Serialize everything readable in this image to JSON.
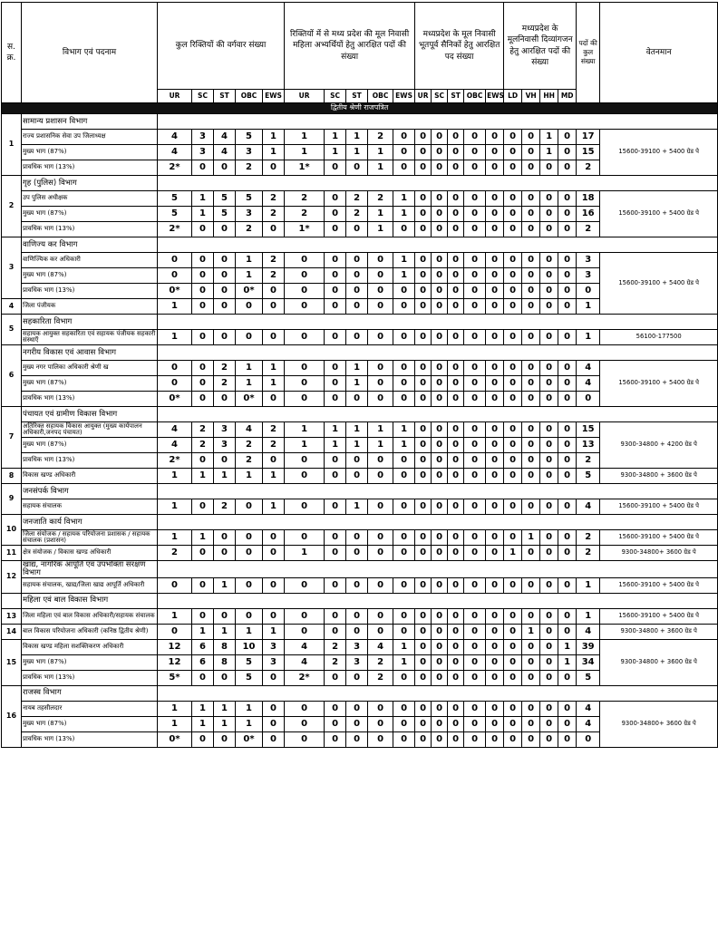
{
  "header": {
    "sno": "स. क्र.",
    "post": "विभाग एवं पदनाम",
    "total_vacancies": "कुल रिक्तियों की वर्गवार संख्या",
    "women": "रिक्तियों में से मध्य प्रदेश की मूल निवासी महिला अभ्यर्थियों हेतु आरक्षित पदों की संख्या",
    "ex_servicemen": "मध्यप्रदेश के मूल निवासी भूतपूर्व सैनिकों हेतु आरक्षित पद संख्या",
    "disabled": "मध्यप्रदेश के मूलनिवासी दिव्यांगजन हेतु आरक्षित पदों की संख्या",
    "total_posts": "पदों की कुल संख्या",
    "pay": "वेतनमान",
    "subheaders": [
      "UR",
      "SC",
      "ST",
      "OBC",
      "EWS",
      "UR",
      "SC",
      "ST",
      "OBC",
      "EWS",
      "UR",
      "SC",
      "ST",
      "OBC",
      "EWS",
      "LD",
      "VH",
      "HH",
      "MD"
    ]
  },
  "section_band": "द्वितीय श्रेणी राजपत्रित",
  "sections": [
    {
      "no": "1",
      "department": "सामान्य प्रशासन विभाग",
      "rows": [
        {
          "post": "राज्य प्रशासनिक सेवा उप जिलाध्यक्ष",
          "cells": [
            "4",
            "3",
            "4",
            "5",
            "1",
            "1",
            "1",
            "1",
            "2",
            "0",
            "0",
            "0",
            "0",
            "0",
            "0",
            "0",
            "0",
            "1",
            "0"
          ],
          "total": "17",
          "pay": "15600-39100 + 5400 ग्रेड पे"
        },
        {
          "post": "मुख्य भाग (87%)",
          "cells": [
            "4",
            "3",
            "4",
            "3",
            "1",
            "1",
            "1",
            "1",
            "1",
            "0",
            "0",
            "0",
            "0",
            "0",
            "0",
            "0",
            "0",
            "1",
            "0"
          ],
          "total": "15"
        },
        {
          "post": "प्रावधिक भाग (13%)",
          "cells": [
            "2*",
            "0",
            "0",
            "2",
            "0",
            "1*",
            "0",
            "0",
            "1",
            "0",
            "0",
            "0",
            "0",
            "0",
            "0",
            "0",
            "0",
            "0",
            "0"
          ],
          "total": "2"
        }
      ]
    },
    {
      "no": "2",
      "department": "गृह (पुलिस) विभाग",
      "rows": [
        {
          "post": "उप पुलिस अधीक्षक",
          "cells": [
            "5",
            "1",
            "5",
            "5",
            "2",
            "2",
            "0",
            "2",
            "2",
            "1",
            "0",
            "0",
            "0",
            "0",
            "0",
            "0",
            "0",
            "0",
            "0"
          ],
          "total": "18",
          "pay": "15600-39100 + 5400 ग्रेड पे"
        },
        {
          "post": "मुख्य भाग (87%)",
          "cells": [
            "5",
            "1",
            "5",
            "3",
            "2",
            "2",
            "0",
            "2",
            "1",
            "1",
            "0",
            "0",
            "0",
            "0",
            "0",
            "0",
            "0",
            "0",
            "0"
          ],
          "total": "16"
        },
        {
          "post": "प्रावधिक भाग (13%)",
          "cells": [
            "2*",
            "0",
            "0",
            "2",
            "0",
            "1*",
            "0",
            "0",
            "1",
            "0",
            "0",
            "0",
            "0",
            "0",
            "0",
            "0",
            "0",
            "0",
            "0"
          ],
          "total": "2"
        }
      ]
    },
    {
      "no": "3",
      "department": "वाणिज्य कर विभाग",
      "rows": [
        {
          "post": "वाणिज्यिक कर अधिकारी",
          "cells": [
            "0",
            "0",
            "0",
            "1",
            "2",
            "0",
            "0",
            "0",
            "0",
            "1",
            "0",
            "0",
            "0",
            "0",
            "0",
            "0",
            "0",
            "0",
            "0"
          ],
          "total": "3",
          "pay": "15600-39100 + 5400 ग्रेड पे"
        },
        {
          "post": "मुख्य भाग (87%)",
          "cells": [
            "0",
            "0",
            "0",
            "1",
            "2",
            "0",
            "0",
            "0",
            "0",
            "1",
            "0",
            "0",
            "0",
            "0",
            "0",
            "0",
            "0",
            "0",
            "0"
          ],
          "total": "3"
        },
        {
          "post": "प्रावधिक भाग (13%)",
          "cells": [
            "0*",
            "0",
            "0",
            "0*",
            "0",
            "0",
            "0",
            "0",
            "0",
            "0",
            "0",
            "0",
            "0",
            "0",
            "0",
            "0",
            "0",
            "0",
            "0"
          ],
          "total": "0"
        },
        {
          "no": "4",
          "post": "जिला पंजीयक",
          "cells": [
            "1",
            "0",
            "0",
            "0",
            "0",
            "0",
            "0",
            "0",
            "0",
            "0",
            "0",
            "0",
            "0",
            "0",
            "0",
            "0",
            "0",
            "0",
            "0"
          ],
          "total": "1"
        }
      ]
    },
    {
      "no": "5",
      "department": "सहकारिता विभाग",
      "rows": [
        {
          "post": "सहायक आयुक्त सहकारिता एवं सहायक पंजीयक सहकारी संस्थाएँ",
          "cells": [
            "1",
            "0",
            "0",
            "0",
            "0",
            "0",
            "0",
            "0",
            "0",
            "0",
            "0",
            "0",
            "0",
            "0",
            "0",
            "0",
            "0",
            "0",
            "0"
          ],
          "total": "1",
          "pay": "56100-177500"
        }
      ]
    },
    {
      "no": "6",
      "department": "नगरीय विकास एवं आवास विभाग",
      "rows": [
        {
          "post": "मुख्य नगर पालिका अधिकारी श्रेणी ख",
          "cells": [
            "0",
            "0",
            "2",
            "1",
            "1",
            "0",
            "0",
            "1",
            "0",
            "0",
            "0",
            "0",
            "0",
            "0",
            "0",
            "0",
            "0",
            "0",
            "0"
          ],
          "total": "4",
          "pay": "15600-39100 + 5400 ग्रेड पे"
        },
        {
          "post": "मुख्य भाग (87%)",
          "cells": [
            "0",
            "0",
            "2",
            "1",
            "1",
            "0",
            "0",
            "1",
            "0",
            "0",
            "0",
            "0",
            "0",
            "0",
            "0",
            "0",
            "0",
            "0",
            "0"
          ],
          "total": "4"
        },
        {
          "post": "प्रावधिक भाग (13%)",
          "cells": [
            "0*",
            "0",
            "0",
            "0*",
            "0",
            "0",
            "0",
            "0",
            "0",
            "0",
            "0",
            "0",
            "0",
            "0",
            "0",
            "0",
            "0",
            "0",
            "0"
          ],
          "total": "0"
        }
      ]
    },
    {
      "no": "7",
      "department": "पंचायत एवं ग्रामीण विकास विभाग",
      "rows": [
        {
          "post": "अतिरिक्त सहायक विकास आयुक्त (मुख्य कार्यपालन अधिकारी,जनपद पंचायत)",
          "cells": [
            "4",
            "2",
            "3",
            "4",
            "2",
            "1",
            "1",
            "1",
            "1",
            "1",
            "0",
            "0",
            "0",
            "0",
            "0",
            "0",
            "0",
            "0",
            "0"
          ],
          "total": "15",
          "pay": "9300-34800 + 4200 ग्रेड पे"
        },
        {
          "post": "मुख्य भाग (87%)",
          "cells": [
            "4",
            "2",
            "3",
            "2",
            "2",
            "1",
            "1",
            "1",
            "1",
            "1",
            "0",
            "0",
            "0",
            "0",
            "0",
            "0",
            "0",
            "0",
            "0"
          ],
          "total": "13"
        },
        {
          "post": "प्रावधिक भाग (13%)",
          "cells": [
            "2*",
            "0",
            "0",
            "2",
            "0",
            "0",
            "0",
            "0",
            "0",
            "0",
            "0",
            "0",
            "0",
            "0",
            "0",
            "0",
            "0",
            "0",
            "0"
          ],
          "total": "2"
        },
        {
          "no": "8",
          "post": "विकास खण्ड अधिकारी",
          "cells": [
            "1",
            "1",
            "1",
            "1",
            "1",
            "0",
            "0",
            "0",
            "0",
            "0",
            "0",
            "0",
            "0",
            "0",
            "0",
            "0",
            "0",
            "0",
            "0"
          ],
          "total": "5",
          "pay": "9300-34800 + 3600 ग्रेड पे"
        }
      ]
    },
    {
      "no": "9",
      "department": "जनसंपर्क विभाग",
      "rows": [
        {
          "post": "सहायक संचालक",
          "cells": [
            "1",
            "0",
            "2",
            "0",
            "1",
            "0",
            "0",
            "1",
            "0",
            "0",
            "0",
            "0",
            "0",
            "0",
            "0",
            "0",
            "0",
            "0",
            "0"
          ],
          "total": "4",
          "pay": "15600-39100 + 5400 ग्रेड पे"
        }
      ]
    },
    {
      "no": "10",
      "department": "जनजाति कार्य विभाग",
      "rows": [
        {
          "post": "जिला संयोजक / सहायक परियोजना प्रशासक / सहायक संचालक (प्रशासन)",
          "cells": [
            "1",
            "1",
            "0",
            "0",
            "0",
            "0",
            "0",
            "0",
            "0",
            "0",
            "0",
            "0",
            "0",
            "0",
            "0",
            "0",
            "1",
            "0",
            "0"
          ],
          "total": "2",
          "pay": "15600-39100 + 5400 ग्रेड पे"
        },
        {
          "no": "11",
          "post": "क्षेत्र संयोजक / विकास खण्ड अधिकारी",
          "cells": [
            "2",
            "0",
            "0",
            "0",
            "0",
            "1",
            "0",
            "0",
            "0",
            "0",
            "0",
            "0",
            "0",
            "0",
            "0",
            "1",
            "0",
            "0",
            "0"
          ],
          "total": "2",
          "pay": "9300-34800+ 3600 ग्रेड पे"
        }
      ]
    },
    {
      "no": "12",
      "department": "खाद्य, नागरिक आपूर्ति एवं उपभोक्ता संरक्षण विभाग",
      "rows": [
        {
          "post": "सहायक संचालक, खाद्य/जिला खाद्य आपूर्ति अधिकारी",
          "cells": [
            "0",
            "0",
            "1",
            "0",
            "0",
            "0",
            "0",
            "0",
            "0",
            "0",
            "0",
            "0",
            "0",
            "0",
            "0",
            "0",
            "0",
            "0",
            "0"
          ],
          "total": "1",
          "pay": "15600-39100 + 5400 ग्रेड पे"
        }
      ]
    },
    {
      "department": "महिला एवं बाल विकास विभाग",
      "rows": [
        {
          "no": "13",
          "post": "जिला महिला एवं बाल विकास अधिकारी/सहायक संचालक",
          "cells": [
            "1",
            "0",
            "0",
            "0",
            "0",
            "0",
            "0",
            "0",
            "0",
            "0",
            "0",
            "0",
            "0",
            "0",
            "0",
            "0",
            "0",
            "0",
            "0"
          ],
          "total": "1",
          "pay": "15600-39100 + 5400 ग्रेड पे"
        },
        {
          "no": "14",
          "post": "बाल विकास परियोजना अधिकारी (कनिष्ठ द्वितीय श्रेणी)",
          "cells": [
            "0",
            "1",
            "1",
            "1",
            "1",
            "0",
            "0",
            "0",
            "0",
            "0",
            "0",
            "0",
            "0",
            "0",
            "0",
            "0",
            "1",
            "0",
            "0"
          ],
          "total": "4",
          "pay": "9300-34800 + 3600 ग्रेड पे"
        },
        {
          "no": "15",
          "post": "विकास खण्ड महिला सशक्तिकरण अधिकारी",
          "cells": [
            "12",
            "6",
            "8",
            "10",
            "3",
            "4",
            "2",
            "3",
            "4",
            "1",
            "0",
            "0",
            "0",
            "0",
            "0",
            "0",
            "0",
            "0",
            "1"
          ],
          "total": "39",
          "pay": "9300-34800 + 3600 ग्रेड पे"
        },
        {
          "post": "मुख्य भाग (87%)",
          "cells": [
            "12",
            "6",
            "8",
            "5",
            "3",
            "4",
            "2",
            "3",
            "2",
            "1",
            "0",
            "0",
            "0",
            "0",
            "0",
            "0",
            "0",
            "0",
            "1"
          ],
          "total": "34"
        },
        {
          "post": "प्रावधिक भाग (13%)",
          "cells": [
            "5*",
            "0",
            "0",
            "5",
            "0",
            "2*",
            "0",
            "0",
            "2",
            "0",
            "0",
            "0",
            "0",
            "0",
            "0",
            "0",
            "0",
            "0",
            "0"
          ],
          "total": "5"
        }
      ]
    },
    {
      "no": "16",
      "department": "राजस्व विभाग",
      "rows": [
        {
          "post": "नायब तहसीलदार",
          "cells": [
            "1",
            "1",
            "1",
            "1",
            "0",
            "0",
            "0",
            "0",
            "0",
            "0",
            "0",
            "0",
            "0",
            "0",
            "0",
            "0",
            "0",
            "0",
            "0"
          ],
          "total": "4",
          "pay": "9300-34800+ 3600 ग्रेड पे"
        },
        {
          "post": "मुख्य भाग (87%)",
          "cells": [
            "1",
            "1",
            "1",
            "1",
            "0",
            "0",
            "0",
            "0",
            "0",
            "0",
            "0",
            "0",
            "0",
            "0",
            "0",
            "0",
            "0",
            "0",
            "0"
          ],
          "total": "4"
        },
        {
          "post": "प्रावधिक भाग (13%)",
          "cells": [
            "0*",
            "0",
            "0",
            "0*",
            "0",
            "0",
            "0",
            "0",
            "0",
            "0",
            "0",
            "0",
            "0",
            "0",
            "0",
            "0",
            "0",
            "0",
            "0"
          ],
          "total": "0"
        }
      ]
    }
  ]
}
